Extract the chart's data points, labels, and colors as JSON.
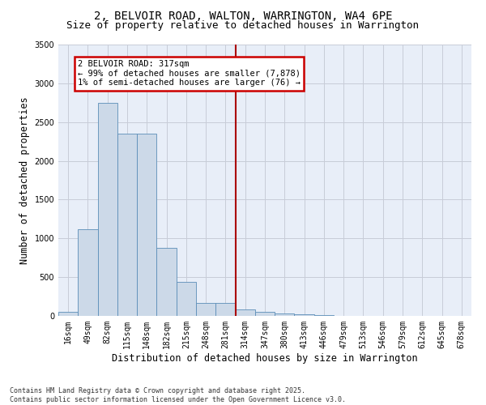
{
  "title1": "2, BELVOIR ROAD, WALTON, WARRINGTON, WA4 6PE",
  "title2": "Size of property relative to detached houses in Warrington",
  "xlabel": "Distribution of detached houses by size in Warrington",
  "ylabel": "Number of detached properties",
  "categories": [
    "16sqm",
    "49sqm",
    "82sqm",
    "115sqm",
    "148sqm",
    "182sqm",
    "215sqm",
    "248sqm",
    "281sqm",
    "314sqm",
    "347sqm",
    "380sqm",
    "413sqm",
    "446sqm",
    "479sqm",
    "513sqm",
    "546sqm",
    "579sqm",
    "612sqm",
    "645sqm",
    "678sqm"
  ],
  "values": [
    50,
    1120,
    2750,
    2350,
    2350,
    880,
    440,
    170,
    165,
    80,
    50,
    35,
    20,
    10,
    5,
    2,
    1,
    0,
    0,
    0,
    0
  ],
  "bar_color": "#ccd9e8",
  "bar_edge_color": "#5b8db8",
  "vline_index": 9,
  "vline_color": "#aa0000",
  "annotation_text": "2 BELVOIR ROAD: 317sqm\n← 99% of detached houses are smaller (7,878)\n1% of semi-detached houses are larger (76) →",
  "annotation_box_color": "#ffffff",
  "annotation_box_edge": "#cc0000",
  "ylim": [
    0,
    3500
  ],
  "yticks": [
    0,
    500,
    1000,
    1500,
    2000,
    2500,
    3000,
    3500
  ],
  "bg_color": "#e8eef8",
  "grid_color": "#c8ccd8",
  "footnote": "Contains HM Land Registry data © Crown copyright and database right 2025.\nContains public sector information licensed under the Open Government Licence v3.0.",
  "title1_fontsize": 10,
  "title2_fontsize": 9,
  "tick_fontsize": 7,
  "ylabel_fontsize": 8.5,
  "xlabel_fontsize": 8.5,
  "footnote_fontsize": 6
}
